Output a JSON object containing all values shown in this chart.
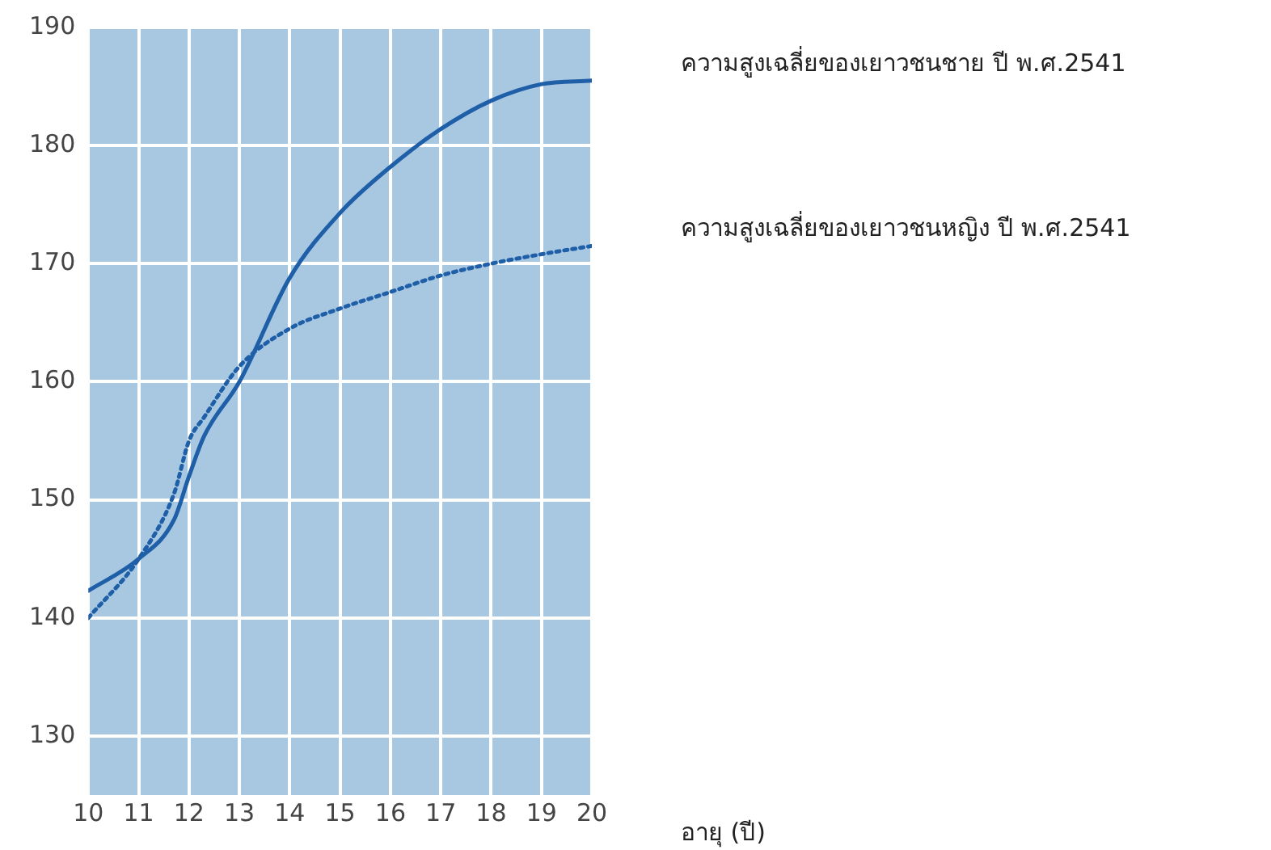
{
  "chart_data": {
    "type": "line",
    "xlabel": "อายุ (ปี)",
    "x": [
      10,
      11,
      11.7,
      12,
      12.3,
      13,
      14,
      15,
      16,
      17,
      18,
      19,
      20
    ],
    "series": [
      {
        "name": "ความสูงเฉลี่ยของเยาวชนชาย ปี พ.ศ.2541",
        "color": "#1f5fa8",
        "line_style": "solid",
        "values": [
          142.3,
          145,
          148.3,
          152,
          155.4,
          160,
          168.8,
          174.3,
          178.2,
          181.4,
          183.8,
          185.2,
          185.5
        ]
      },
      {
        "name": "ความสูงเฉลี่ยของเยาวชนหญิง ปี พ.ศ.2541",
        "color": "#1f5fa8",
        "line_style": "dotted",
        "values": [
          140,
          145,
          150.5,
          155,
          157,
          161.3,
          164.5,
          166.2,
          167.6,
          169,
          170,
          170.8,
          171.5
        ]
      }
    ],
    "xlim": [
      10,
      20
    ],
    "xticks": [
      10,
      11,
      12,
      13,
      14,
      15,
      16,
      17,
      18,
      19,
      20
    ],
    "ylim": [
      125,
      190
    ],
    "yticks": [
      130,
      140,
      150,
      160,
      170,
      180,
      190
    ],
    "grid": true,
    "marker": "none"
  }
}
